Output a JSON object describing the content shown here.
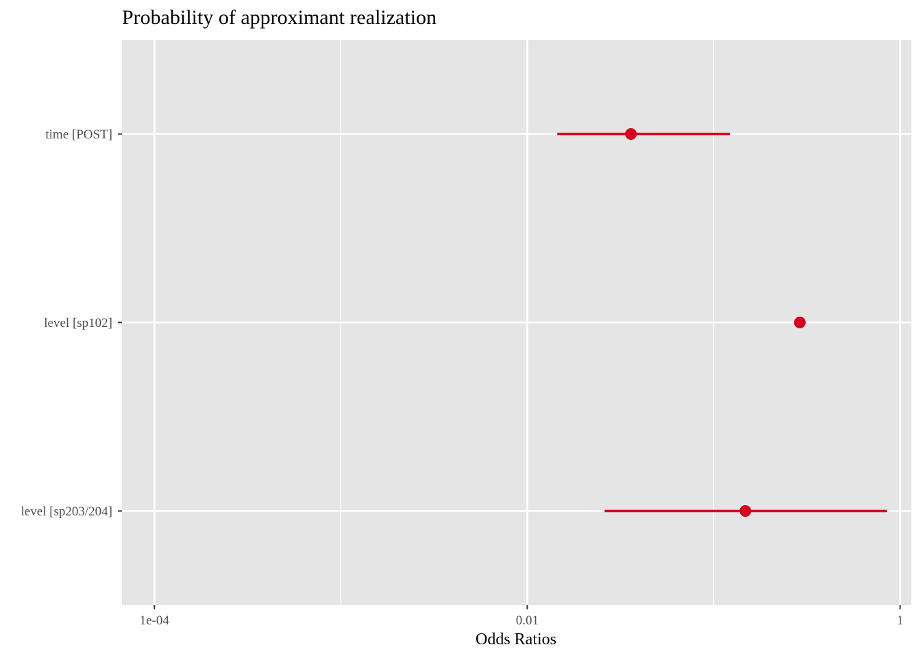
{
  "chart_data": {
    "type": "forest",
    "title": "Probability of approximant realization",
    "xlabel": "Odds Ratios",
    "ylabel": "",
    "x_scale": "log10",
    "xlim": [
      6.7e-05,
      1.15
    ],
    "x_ticks": [
      {
        "value": 0.0001,
        "label": "1e-04"
      },
      {
        "value": 0.01,
        "label": "0.01"
      },
      {
        "value": 1,
        "label": "1"
      }
    ],
    "x_minor_grid": [
      0.001,
      0.1
    ],
    "categories": [
      "time [POST]",
      "level [sp102]",
      "level [sp203/204]"
    ],
    "estimates": [
      {
        "term": "time [POST]",
        "estimate": 0.036,
        "conf_low": 0.0145,
        "conf_high": 0.122
      },
      {
        "term": "level [sp102]",
        "estimate": 0.29,
        "conf_low": null,
        "conf_high": null
      },
      {
        "term": "level [sp203/204]",
        "estimate": 0.148,
        "conf_low": 0.026,
        "conf_high": 0.85
      }
    ],
    "grid": true,
    "legend": "none",
    "colors": {
      "panel": "#e5e5e5",
      "grid": "#ffffff",
      "point": "#d7001f",
      "tick": "#333333"
    }
  }
}
